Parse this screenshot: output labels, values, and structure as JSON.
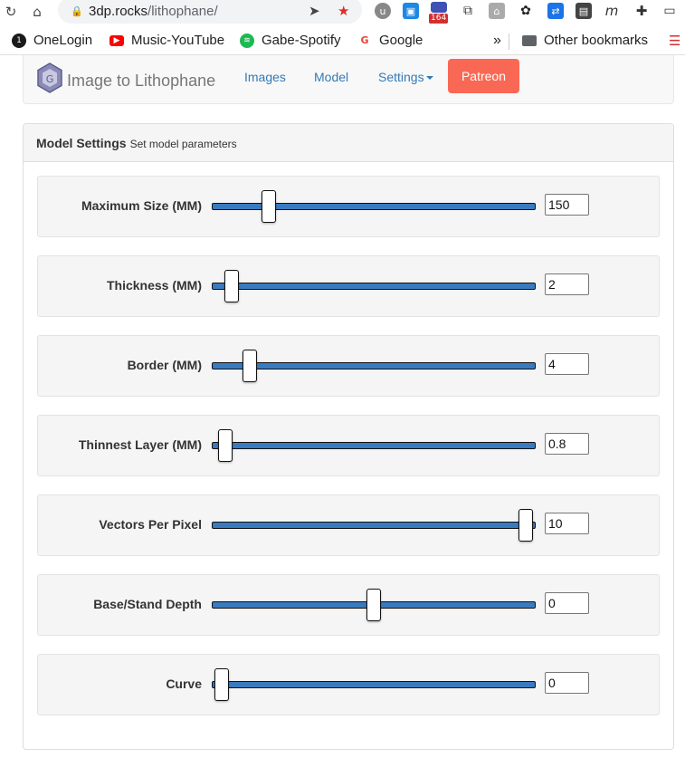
{
  "browser": {
    "url_host": "3dp.rocks",
    "url_path": "/lithophane/",
    "badge_count": "164",
    "bookmarks": [
      {
        "label": "OneLogin"
      },
      {
        "label": "Music-YouTube"
      },
      {
        "label": "Gabe-Spotify"
      },
      {
        "label": "Google"
      }
    ],
    "more_glyph": "»",
    "other_bookmarks": "Other bookmarks"
  },
  "navbar": {
    "brand": "Image to Lithophane",
    "links": [
      "Images",
      "Model",
      "Settings"
    ],
    "patreon": "Patreon"
  },
  "panel": {
    "title": "Model Settings",
    "subtitle": "Set model parameters"
  },
  "settings": [
    {
      "label": "Maximum Size (MM)",
      "value": "150",
      "fraction": 0.16
    },
    {
      "label": "Thickness (MM)",
      "value": "2",
      "fraction": 0.04
    },
    {
      "label": "Border (MM)",
      "value": "4",
      "fraction": 0.1
    },
    {
      "label": "Thinnest Layer (MM)",
      "value": "0.8",
      "fraction": 0.02
    },
    {
      "label": "Vectors Per Pixel",
      "value": "10",
      "fraction": 0.99
    },
    {
      "label": "Base/Stand Depth",
      "value": "0",
      "fraction": 0.5
    },
    {
      "label": "Curve",
      "value": "0",
      "fraction": 0.01
    }
  ],
  "colors": {
    "accent": "#337ab7",
    "patreon": "#f96854",
    "slider_fill": "#3a7bbf"
  }
}
